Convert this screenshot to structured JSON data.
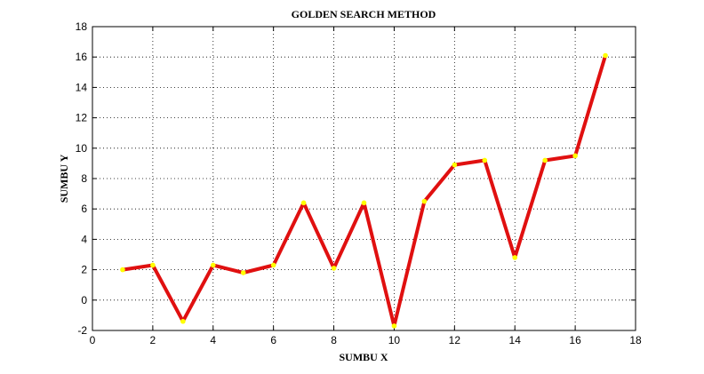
{
  "chart_data": {
    "type": "line",
    "title": "GOLDEN SEARCH METHOD",
    "xlabel": "SUMBU X",
    "ylabel": "SUMBU Y",
    "xlim": [
      0,
      18
    ],
    "ylim": [
      -2,
      18
    ],
    "xticks": [
      0,
      2,
      4,
      6,
      8,
      10,
      12,
      14,
      16,
      18
    ],
    "yticks": [
      -2,
      0,
      2,
      4,
      6,
      8,
      10,
      12,
      14,
      16,
      18
    ],
    "grid": true,
    "series": [
      {
        "x": [
          1,
          2,
          3,
          4,
          5,
          6,
          7,
          8,
          9,
          10,
          11,
          12,
          13,
          14,
          15,
          16,
          17
        ],
        "y": [
          2.0,
          2.3,
          -1.4,
          2.3,
          1.8,
          2.3,
          6.4,
          2.1,
          6.4,
          -1.7,
          6.5,
          8.9,
          9.2,
          2.8,
          9.2,
          9.5,
          16.1
        ],
        "line_color": "#e01010",
        "marker_color": "#ffff00"
      }
    ],
    "colors": {
      "line": "#e01010",
      "marker": "#ffff00",
      "grid": "#000000",
      "axes": "#000000"
    }
  }
}
